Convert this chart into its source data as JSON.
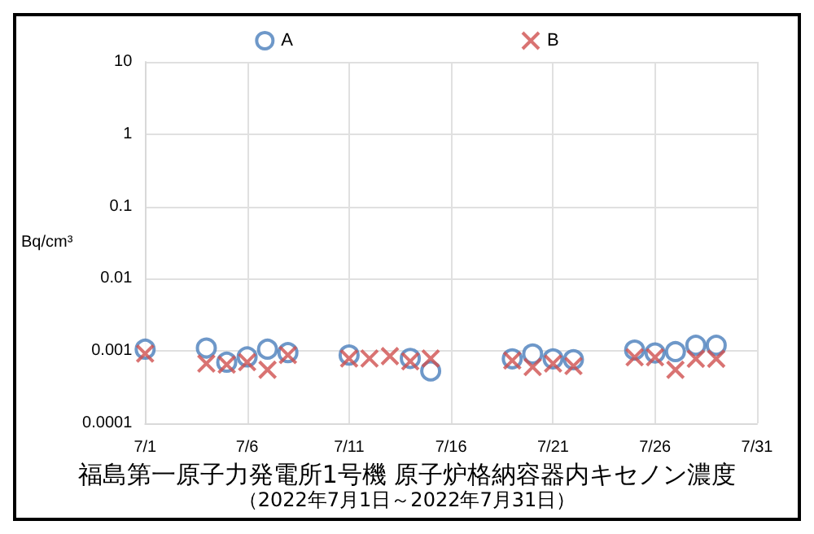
{
  "chart_data": {
    "type": "scatter",
    "title": "福島第一原子力発電所1号機 原子炉格納容器内キセノン濃度",
    "subtitle": "（2022年7月1日～2022年7月31日）",
    "ylabel": "Bq/cm³",
    "x": [
      "2022-07-01",
      "2022-07-04",
      "2022-07-05",
      "2022-07-06",
      "2022-07-07",
      "2022-07-08",
      "2022-07-11",
      "2022-07-12",
      "2022-07-13",
      "2022-07-14",
      "2022-07-15",
      "2022-07-19",
      "2022-07-20",
      "2022-07-21",
      "2022-07-22",
      "2022-07-25",
      "2022-07-26",
      "2022-07-27",
      "2022-07-28",
      "2022-07-29"
    ],
    "series": [
      {
        "name": "A",
        "color": "#4a7ebb",
        "marker": "circle",
        "values": [
          0.00106,
          0.0011,
          0.0007,
          0.00083,
          0.00106,
          0.00095,
          0.00088,
          null,
          null,
          0.00079,
          0.00053,
          0.00078,
          0.00091,
          0.00078,
          0.00076,
          0.00103,
          0.00094,
          0.00098,
          0.0012,
          0.0012
        ]
      },
      {
        "name": "B",
        "color": "#d0504f",
        "marker": "cross",
        "values": [
          0.00092,
          0.00067,
          0.00065,
          0.0007,
          0.00055,
          0.00088,
          0.00079,
          0.00079,
          0.00085,
          0.00072,
          0.00079,
          0.00074,
          0.0006,
          0.00067,
          0.00062,
          0.00082,
          0.00082,
          0.00055,
          0.00078,
          0.00078
        ]
      }
    ],
    "xlim": [
      "2022-07-01",
      "2022-07-31"
    ],
    "xticks": [
      {
        "value": "2022-07-01",
        "label": "7/1"
      },
      {
        "value": "2022-07-06",
        "label": "7/6"
      },
      {
        "value": "2022-07-11",
        "label": "7/11"
      },
      {
        "value": "2022-07-16",
        "label": "7/16"
      },
      {
        "value": "2022-07-21",
        "label": "7/21"
      },
      {
        "value": "2022-07-26",
        "label": "7/26"
      },
      {
        "value": "2022-07-31",
        "label": "7/31"
      }
    ],
    "ylim": [
      0.0001,
      10
    ],
    "yticks": [
      0.0001,
      0.001,
      0.01,
      0.1,
      1,
      10
    ],
    "log": "y",
    "grid": true,
    "legend": "top"
  }
}
